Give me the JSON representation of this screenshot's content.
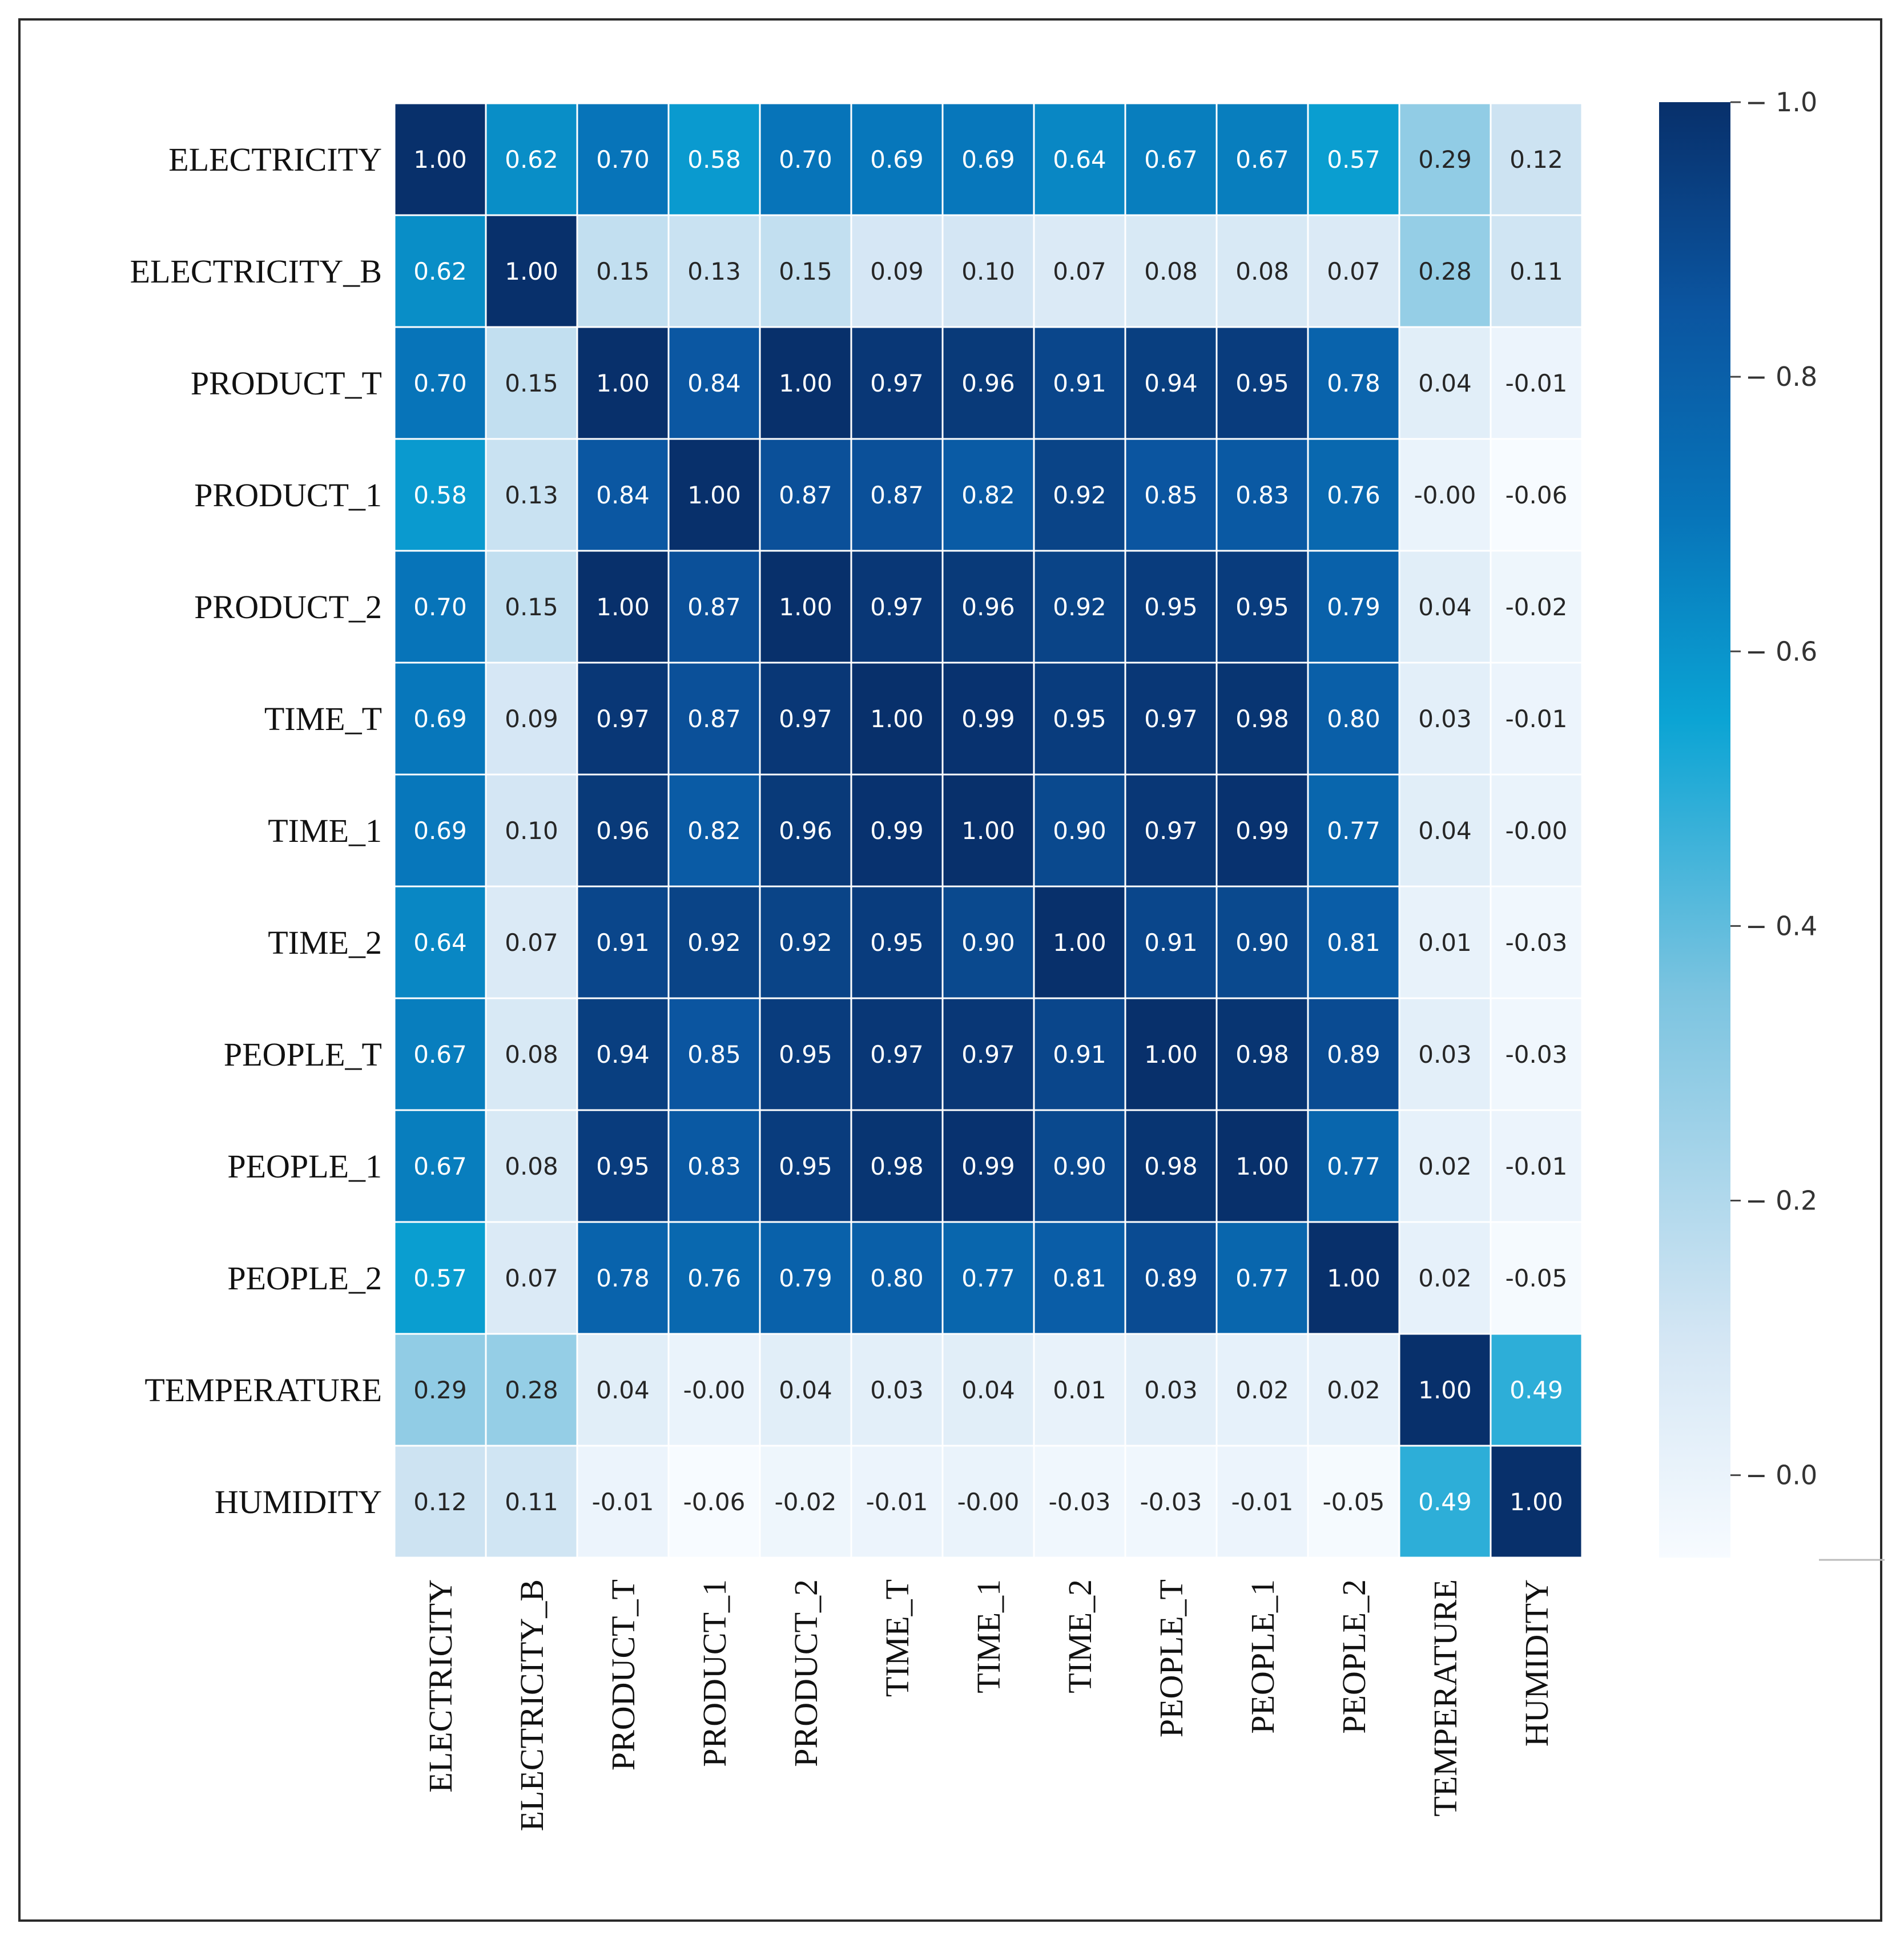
{
  "chart_data": {
    "type": "heatmap",
    "title": "",
    "variables": [
      "ELECTRICITY",
      "ELECTRICITY_B",
      "PRODUCT_T",
      "PRODUCT_1",
      "PRODUCT_2",
      "TIME_T",
      "TIME_1",
      "TIME_2",
      "PEOPLE_T",
      "PEOPLE_1",
      "PEOPLE_2",
      "TEMPERATURE",
      "HUMIDITY"
    ],
    "values": [
      [
        "1.00",
        "0.62",
        "0.70",
        "0.58",
        "0.70",
        "0.69",
        "0.69",
        "0.64",
        "0.67",
        "0.67",
        "0.57",
        "0.29",
        "0.12"
      ],
      [
        "0.62",
        "1.00",
        "0.15",
        "0.13",
        "0.15",
        "0.09",
        "0.10",
        "0.07",
        "0.08",
        "0.08",
        "0.07",
        "0.28",
        "0.11"
      ],
      [
        "0.70",
        "0.15",
        "1.00",
        "0.84",
        "1.00",
        "0.97",
        "0.96",
        "0.91",
        "0.94",
        "0.95",
        "0.78",
        "0.04",
        "-0.01"
      ],
      [
        "0.58",
        "0.13",
        "0.84",
        "1.00",
        "0.87",
        "0.87",
        "0.82",
        "0.92",
        "0.85",
        "0.83",
        "0.76",
        "-0.00",
        "-0.06"
      ],
      [
        "0.70",
        "0.15",
        "1.00",
        "0.87",
        "1.00",
        "0.97",
        "0.96",
        "0.92",
        "0.95",
        "0.95",
        "0.79",
        "0.04",
        "-0.02"
      ],
      [
        "0.69",
        "0.09",
        "0.97",
        "0.87",
        "0.97",
        "1.00",
        "0.99",
        "0.95",
        "0.97",
        "0.98",
        "0.80",
        "0.03",
        "-0.01"
      ],
      [
        "0.69",
        "0.10",
        "0.96",
        "0.82",
        "0.96",
        "0.99",
        "1.00",
        "0.90",
        "0.97",
        "0.99",
        "0.77",
        "0.04",
        "-0.00"
      ],
      [
        "0.64",
        "0.07",
        "0.91",
        "0.92",
        "0.92",
        "0.95",
        "0.90",
        "1.00",
        "0.91",
        "0.90",
        "0.81",
        "0.01",
        "-0.03"
      ],
      [
        "0.67",
        "0.08",
        "0.94",
        "0.85",
        "0.95",
        "0.97",
        "0.97",
        "0.91",
        "1.00",
        "0.98",
        "0.89",
        "0.03",
        "-0.03"
      ],
      [
        "0.67",
        "0.08",
        "0.95",
        "0.83",
        "0.95",
        "0.98",
        "0.99",
        "0.90",
        "0.98",
        "1.00",
        "0.77",
        "0.02",
        "-0.01"
      ],
      [
        "0.57",
        "0.07",
        "0.78",
        "0.76",
        "0.79",
        "0.80",
        "0.77",
        "0.81",
        "0.89",
        "0.77",
        "1.00",
        "0.02",
        "-0.05"
      ],
      [
        "0.29",
        "0.28",
        "0.04",
        "-0.00",
        "0.04",
        "0.03",
        "0.04",
        "0.01",
        "0.03",
        "0.02",
        "0.02",
        "1.00",
        "0.49"
      ],
      [
        "0.12",
        "0.11",
        "-0.01",
        "-0.06",
        "-0.02",
        "-0.01",
        "-0.00",
        "-0.03",
        "-0.03",
        "-0.01",
        "-0.05",
        "0.49",
        "1.00"
      ]
    ],
    "colorbar": {
      "range": [
        -0.06,
        1.0
      ],
      "ticks": [
        "0.0",
        "0.2",
        "0.4",
        "0.6",
        "0.8",
        "1.0"
      ],
      "colors": {
        "low": "#f7fbff",
        "light": "#d4e6f4",
        "mid_light": "#7cc4e0",
        "mid": "#0ba4d4",
        "mid_dark": "#0774b9",
        "dark": "#0b55a0",
        "darkest": "#08306b"
      }
    },
    "xlabel": "",
    "ylabel": ""
  }
}
